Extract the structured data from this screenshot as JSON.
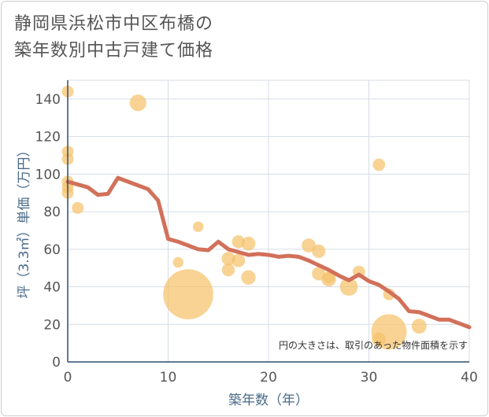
{
  "chart_data": {
    "type": "scatter",
    "title_lines": [
      "静岡県浜松市中区布橋の",
      "築年数別中古戸建て価格"
    ],
    "xlabel": "築年数（年）",
    "ylabel": "坪（3.3㎡）単価（万円）",
    "xlim": [
      0,
      40
    ],
    "ylim": [
      0,
      150
    ],
    "x_ticks": [
      0,
      10,
      20,
      30,
      40
    ],
    "y_ticks": [
      0,
      20,
      40,
      60,
      80,
      100,
      120,
      140
    ],
    "note": "円の大きさは、取引のあった物件面積を示す",
    "colors": {
      "bubble": "#f5c26b",
      "trend": "#d2705a",
      "grid": "#d5dde6"
    },
    "bubbles": [
      {
        "x": 0,
        "y": 144,
        "s": 1
      },
      {
        "x": 0,
        "y": 112,
        "s": 1
      },
      {
        "x": 0,
        "y": 108,
        "s": 1
      },
      {
        "x": 0,
        "y": 96,
        "s": 1
      },
      {
        "x": 0,
        "y": 93,
        "s": 1
      },
      {
        "x": 0,
        "y": 90,
        "s": 1
      },
      {
        "x": 1,
        "y": 82,
        "s": 1
      },
      {
        "x": 7,
        "y": 138,
        "s": 2
      },
      {
        "x": 11,
        "y": 53,
        "s": 0.8
      },
      {
        "x": 12,
        "y": 36,
        "s": 18
      },
      {
        "x": 13,
        "y": 72,
        "s": 0.8
      },
      {
        "x": 16,
        "y": 55,
        "s": 1.3
      },
      {
        "x": 16,
        "y": 49,
        "s": 1.2
      },
      {
        "x": 17,
        "y": 64,
        "s": 1.2
      },
      {
        "x": 17,
        "y": 54,
        "s": 1.3
      },
      {
        "x": 18,
        "y": 63,
        "s": 1.4
      },
      {
        "x": 18,
        "y": 45,
        "s": 1.5
      },
      {
        "x": 24,
        "y": 62,
        "s": 1.4
      },
      {
        "x": 25,
        "y": 59,
        "s": 1.3
      },
      {
        "x": 25,
        "y": 47,
        "s": 1.3
      },
      {
        "x": 26,
        "y": 44,
        "s": 1.5
      },
      {
        "x": 26,
        "y": 45,
        "s": 1
      },
      {
        "x": 28,
        "y": 40,
        "s": 2.3
      },
      {
        "x": 29,
        "y": 48,
        "s": 1.1
      },
      {
        "x": 31,
        "y": 105,
        "s": 1.1
      },
      {
        "x": 31,
        "y": 12,
        "s": 1.4
      },
      {
        "x": 32,
        "y": 16,
        "s": 9
      },
      {
        "x": 32,
        "y": 36,
        "s": 1
      },
      {
        "x": 35,
        "y": 19,
        "s": 1.6
      }
    ],
    "trend": {
      "x": [
        0,
        1,
        2,
        3,
        4,
        5,
        6,
        7,
        8,
        9,
        10,
        11,
        12,
        13,
        14,
        15,
        16,
        17,
        18,
        19,
        20,
        21,
        22,
        23,
        24,
        25,
        26,
        27,
        28,
        29,
        30,
        31,
        32,
        33,
        34,
        35,
        36,
        37,
        38,
        39,
        40
      ],
      "y": [
        96,
        94.5,
        93,
        89,
        89.5,
        98,
        96,
        94,
        92,
        86,
        65.5,
        64,
        62,
        60,
        59.5,
        64,
        60,
        58.5,
        57,
        57.5,
        57,
        56,
        56.5,
        56,
        54,
        51.5,
        49,
        46,
        43.5,
        46.5,
        43,
        41,
        37.5,
        33.5,
        27,
        26.5,
        24.5,
        22.5,
        22.5,
        20.5,
        18.5
      ]
    }
  }
}
